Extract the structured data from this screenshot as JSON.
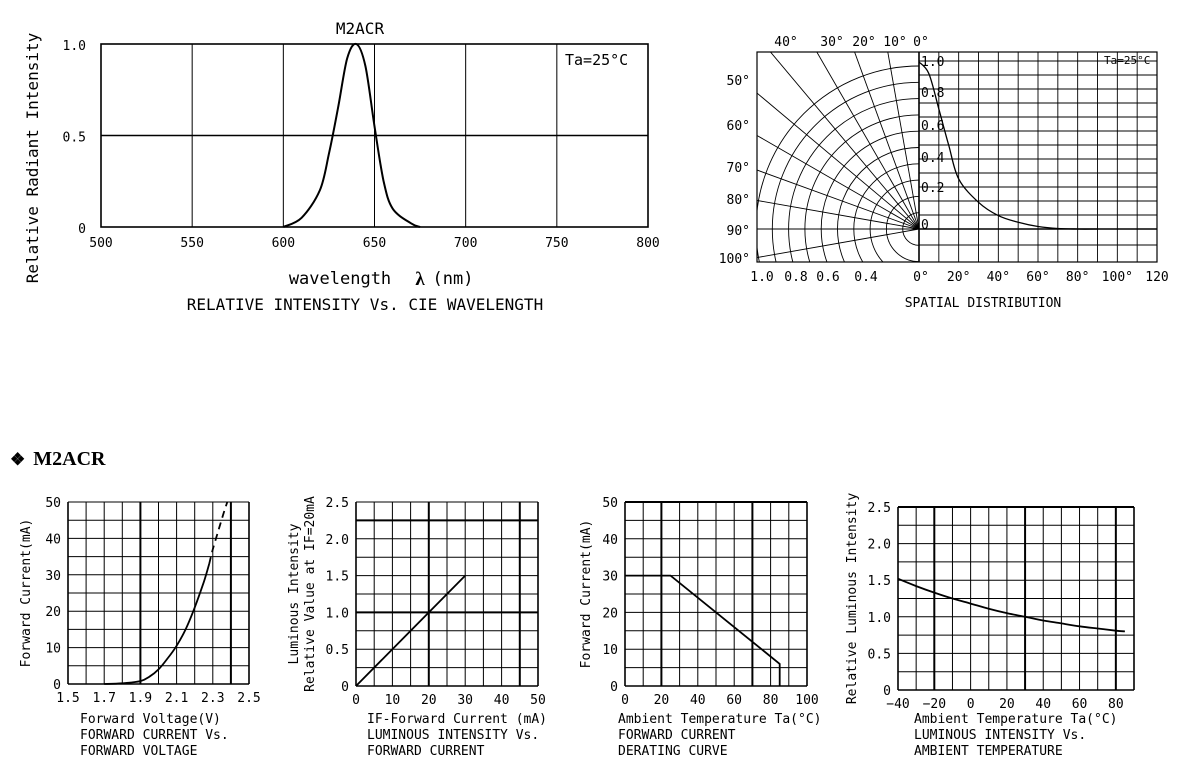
{
  "section": {
    "icon": "diamond-bullet-icon",
    "icon_glyph": "❖",
    "title": "M2ACR"
  },
  "chart_data": [
    {
      "id": "spectrum",
      "type": "line",
      "title": "M2ACR",
      "caption": "RELATIVE INTENSITY Vs. CIE WAVELENGTH",
      "xlabel": "wavelength",
      "xlabel_symbol": "λ",
      "xlabel_unit": "(nm)",
      "ylabel": "Relative Radiant Intensity",
      "annotation": "Ta=25°C",
      "xlim": [
        500,
        800
      ],
      "ylim": [
        0,
        1.0
      ],
      "x_ticks": [
        "500",
        "550",
        "600",
        "650",
        "700",
        "750",
        "800"
      ],
      "y_ticks": [
        "0",
        "0.5",
        "1.0"
      ],
      "grid": true,
      "series": [
        {
          "x": [
            600,
            610,
            620,
            625,
            630,
            635,
            640,
            645,
            650,
            655,
            660,
            670,
            675
          ],
          "y": [
            0,
            0.05,
            0.2,
            0.4,
            0.65,
            0.92,
            1.0,
            0.88,
            0.55,
            0.25,
            0.1,
            0.02,
            0
          ]
        }
      ]
    },
    {
      "id": "spatial",
      "type": "line",
      "caption": "SPATIAL DISTRIBUTION",
      "annotation": "Ta=25°C",
      "angle_labels_top": [
        "40°",
        "30°",
        "20°",
        "10°",
        "0°"
      ],
      "angle_labels_left": [
        "50°",
        "60°",
        "70°",
        "80°",
        "90°",
        "100°"
      ],
      "radial_labels_bottom": [
        "1.0",
        "0.8",
        "0.6",
        "0.4"
      ],
      "x_ticks": [
        "0°",
        "20°",
        "40°",
        "60°",
        "80°",
        "100°",
        "120"
      ],
      "y_ticks": [
        "0",
        "0.2",
        "0.4",
        "0.6",
        "0.8",
        "1.0"
      ],
      "xlim": [
        0,
        120
      ],
      "ylim": [
        0,
        1.0
      ],
      "grid": true,
      "series": [
        {
          "x": [
            0,
            5,
            10,
            15,
            20,
            30,
            40,
            50,
            60,
            70,
            80,
            90
          ],
          "y": [
            1.0,
            0.93,
            0.72,
            0.5,
            0.3,
            0.16,
            0.08,
            0.04,
            0.015,
            0.003,
            0,
            0
          ]
        }
      ]
    },
    {
      "id": "iv",
      "type": "line",
      "caption": [
        "FORWARD CURRENT Vs.",
        "FORWARD VOLTAGE"
      ],
      "xlabel": "Forward Voltage(V)",
      "ylabel": "Forward Current(mA)",
      "xlim": [
        1.5,
        2.5
      ],
      "ylim": [
        0,
        50
      ],
      "x_ticks": [
        "1.5",
        "1.7",
        "1.9",
        "2.1",
        "2.3",
        "2.5"
      ],
      "y_ticks": [
        "0",
        "10",
        "20",
        "30",
        "40",
        "50"
      ],
      "grid": true,
      "series": [
        {
          "style": "solid",
          "x": [
            1.7,
            1.8,
            1.9,
            1.95,
            2.0,
            2.05,
            2.1,
            2.15,
            2.2,
            2.25,
            2.28
          ],
          "y": [
            0,
            0.2,
            0.8,
            2,
            4,
            7,
            10.5,
            15,
            21,
            28,
            33
          ]
        },
        {
          "style": "dashed",
          "x": [
            2.28,
            2.3,
            2.33,
            2.36,
            2.38
          ],
          "y": [
            33,
            37,
            42,
            47,
            50
          ]
        }
      ]
    },
    {
      "id": "lum-current",
      "type": "line",
      "caption": [
        "LUMINOUS INTENSITY Vs.",
        "FORWARD CURRENT"
      ],
      "xlabel": "IF-Forward Current (mA)",
      "ylabel": [
        "Luminous Intensity",
        "Relative Value at IF=20mA"
      ],
      "xlim": [
        0,
        50
      ],
      "ylim": [
        0,
        2.5
      ],
      "x_ticks": [
        "0",
        "10",
        "20",
        "30",
        "40",
        "50"
      ],
      "y_ticks": [
        "0",
        "0.5",
        "1.0",
        "1.5",
        "2.0",
        "2.5"
      ],
      "grid": true,
      "series": [
        {
          "x": [
            0,
            30
          ],
          "y": [
            0,
            1.5
          ]
        }
      ]
    },
    {
      "id": "derating",
      "type": "line",
      "caption": [
        "FORWARD CURRENT",
        "DERATING CURVE"
      ],
      "xlabel": "Ambient Temperature Ta(°C)",
      "ylabel": "Forward Current(mA)",
      "xlim": [
        0,
        100
      ],
      "ylim": [
        0,
        50
      ],
      "x_ticks": [
        "0",
        "20",
        "40",
        "60",
        "80",
        "100"
      ],
      "y_ticks": [
        "0",
        "10",
        "20",
        "30",
        "40",
        "50"
      ],
      "grid": true,
      "series": [
        {
          "x": [
            0,
            25,
            85,
            85
          ],
          "y": [
            30,
            30,
            6,
            0
          ]
        }
      ]
    },
    {
      "id": "lum-temp",
      "type": "line",
      "caption": [
        "LUMINOUS INTENSITY Vs.",
        "AMBIENT TEMPERATURE"
      ],
      "xlabel": "Ambient Temperature Ta(°C)",
      "ylabel": "Relative Luminous Intensity",
      "xlim": [
        -40,
        90
      ],
      "ylim": [
        0,
        2.5
      ],
      "x_ticks": [
        "−40",
        "−20",
        "0",
        "20",
        "40",
        "60",
        "80"
      ],
      "x_tick_values": [
        -40,
        -20,
        0,
        20,
        40,
        60,
        80
      ],
      "y_ticks": [
        "0",
        "0.5",
        "1.0",
        "1.5",
        "2.0",
        "2.5"
      ],
      "grid": true,
      "series": [
        {
          "x": [
            -40,
            -30,
            -20,
            -10,
            0,
            10,
            20,
            30,
            40,
            50,
            60,
            70,
            80,
            85
          ],
          "y": [
            1.52,
            1.42,
            1.33,
            1.25,
            1.18,
            1.11,
            1.05,
            1.0,
            0.95,
            0.91,
            0.87,
            0.84,
            0.81,
            0.8
          ]
        }
      ]
    }
  ]
}
